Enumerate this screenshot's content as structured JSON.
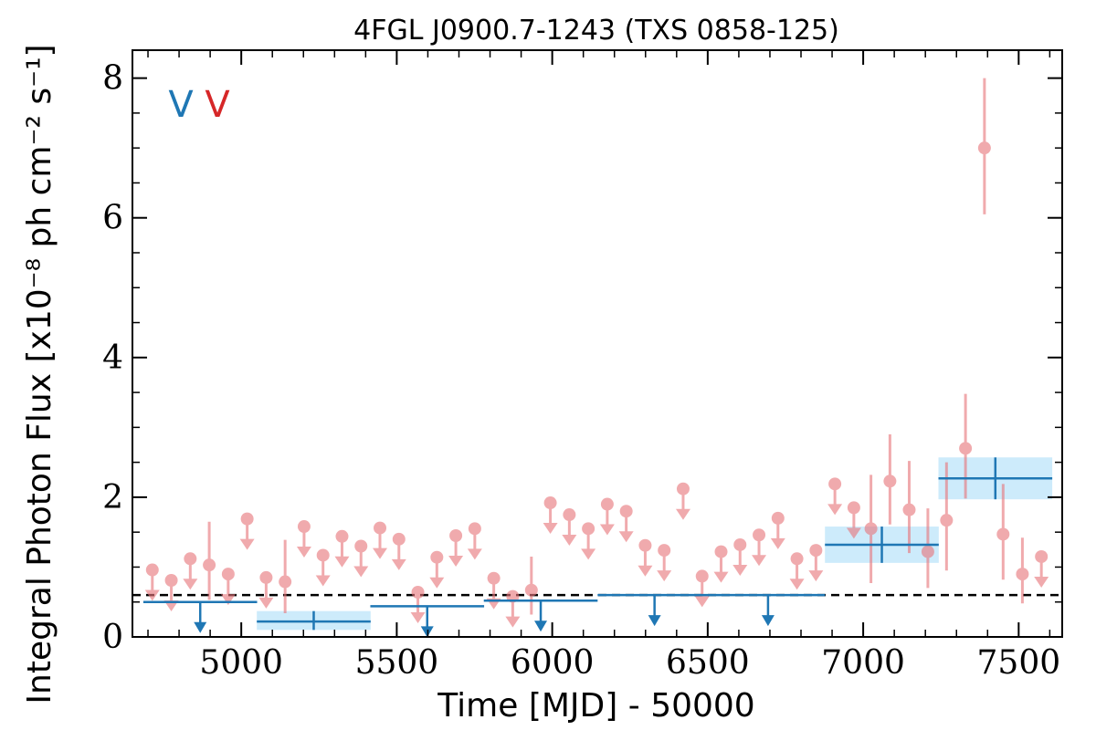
{
  "chart_data": {
    "type": "scatter",
    "title": "4FGL J0900.7-1243 (TXS 0858-125)",
    "xlabel": "Time [MJD] - 50000",
    "ylabel": "Integral Photon Flux [x10⁻⁸ ph cm⁻² s⁻¹]",
    "xlim": [
      4650,
      7640
    ],
    "ylim": [
      0,
      8.4
    ],
    "xticks": [
      5000,
      5500,
      6000,
      6500,
      7000,
      7500
    ],
    "xtick_labels": [
      "5000",
      "5500",
      "6000",
      "6500",
      "7000",
      "7500"
    ],
    "yticks": [
      0,
      2,
      4,
      6,
      8
    ],
    "ytick_labels": [
      "0",
      "2",
      "4",
      "6",
      "8"
    ],
    "reference_line": {
      "y": 0.6,
      "style": "dashed",
      "color": "#000000"
    },
    "legend": {
      "placement": "top-left",
      "entries": [
        {
          "label": "V",
          "color": "#1f77b4"
        },
        {
          "label": "V",
          "color": "#d62728"
        }
      ]
    },
    "series": [
      {
        "color": "#1f77b4",
        "band_color": "#cdebfb",
        "detections": [
          {
            "x": 5233,
            "y": 0.22,
            "xerr": 183,
            "yerr_low": 0.12,
            "yerr_high": 0.15
          },
          {
            "x": 7060,
            "y": 1.32,
            "xerr": 183,
            "yerr_low": 0.26,
            "yerr_high": 0.26
          },
          {
            "x": 7425,
            "y": 2.27,
            "xerr": 183,
            "yerr_low": 0.3,
            "yerr_high": 0.3
          }
        ],
        "upper_limits": [
          {
            "x": 4868,
            "y": 0.5,
            "xerr": 183
          },
          {
            "x": 5598,
            "y": 0.44,
            "xerr": 183
          },
          {
            "x": 5963,
            "y": 0.52,
            "xerr": 183
          },
          {
            "x": 6329,
            "y": 0.6,
            "xerr": 183
          },
          {
            "x": 6694,
            "y": 0.6,
            "xerr": 183
          }
        ]
      },
      {
        "color": "#e8777c",
        "detections": [
          {
            "x": 4897,
            "y": 1.03,
            "yerr_low": 0.5,
            "yerr_high": 0.62
          },
          {
            "x": 5141,
            "y": 0.79,
            "yerr_low": 0.45,
            "yerr_high": 0.6
          },
          {
            "x": 5933,
            "y": 0.67,
            "yerr_low": 0.35,
            "yerr_high": 0.48
          },
          {
            "x": 7025,
            "y": 1.55,
            "yerr_low": 0.78,
            "yerr_high": 0.77
          },
          {
            "x": 7086,
            "y": 2.23,
            "yerr_low": 0.62,
            "yerr_high": 0.67
          },
          {
            "x": 7148,
            "y": 1.82,
            "yerr_low": 0.62,
            "yerr_high": 0.7
          },
          {
            "x": 7208,
            "y": 1.22,
            "yerr_low": 0.52,
            "yerr_high": 0.62
          },
          {
            "x": 7268,
            "y": 1.67,
            "yerr_low": 0.72,
            "yerr_high": 0.83
          },
          {
            "x": 7329,
            "y": 2.7,
            "yerr_low": 0.72,
            "yerr_high": 0.78
          },
          {
            "x": 7390,
            "y": 7.0,
            "yerr_low": 0.95,
            "yerr_high": 1.0
          },
          {
            "x": 7450,
            "y": 1.47,
            "yerr_low": 0.65,
            "yerr_high": 0.72
          },
          {
            "x": 7512,
            "y": 0.9,
            "yerr_low": 0.42,
            "yerr_high": 0.52
          }
        ],
        "upper_limits": [
          {
            "x": 4714,
            "y": 0.96
          },
          {
            "x": 4775,
            "y": 0.81
          },
          {
            "x": 4836,
            "y": 1.12
          },
          {
            "x": 4958,
            "y": 0.9
          },
          {
            "x": 5019,
            "y": 1.69
          },
          {
            "x": 5080,
            "y": 0.85
          },
          {
            "x": 5202,
            "y": 1.58
          },
          {
            "x": 5263,
            "y": 1.17
          },
          {
            "x": 5324,
            "y": 1.44
          },
          {
            "x": 5385,
            "y": 1.3
          },
          {
            "x": 5446,
            "y": 1.56
          },
          {
            "x": 5507,
            "y": 1.4
          },
          {
            "x": 5568,
            "y": 0.64
          },
          {
            "x": 5629,
            "y": 1.14
          },
          {
            "x": 5690,
            "y": 1.45
          },
          {
            "x": 5751,
            "y": 1.55
          },
          {
            "x": 5812,
            "y": 0.84
          },
          {
            "x": 5873,
            "y": 0.58
          },
          {
            "x": 5994,
            "y": 1.92
          },
          {
            "x": 6055,
            "y": 1.75
          },
          {
            "x": 6116,
            "y": 1.55
          },
          {
            "x": 6177,
            "y": 1.9
          },
          {
            "x": 6238,
            "y": 1.8
          },
          {
            "x": 6299,
            "y": 1.31
          },
          {
            "x": 6360,
            "y": 1.24
          },
          {
            "x": 6421,
            "y": 2.12
          },
          {
            "x": 6482,
            "y": 0.87
          },
          {
            "x": 6543,
            "y": 1.22
          },
          {
            "x": 6604,
            "y": 1.32
          },
          {
            "x": 6665,
            "y": 1.46
          },
          {
            "x": 6726,
            "y": 1.7
          },
          {
            "x": 6787,
            "y": 1.12
          },
          {
            "x": 6848,
            "y": 1.24
          },
          {
            "x": 6909,
            "y": 2.19
          },
          {
            "x": 6970,
            "y": 1.85
          },
          {
            "x": 7573,
            "y": 1.15
          }
        ]
      }
    ]
  }
}
